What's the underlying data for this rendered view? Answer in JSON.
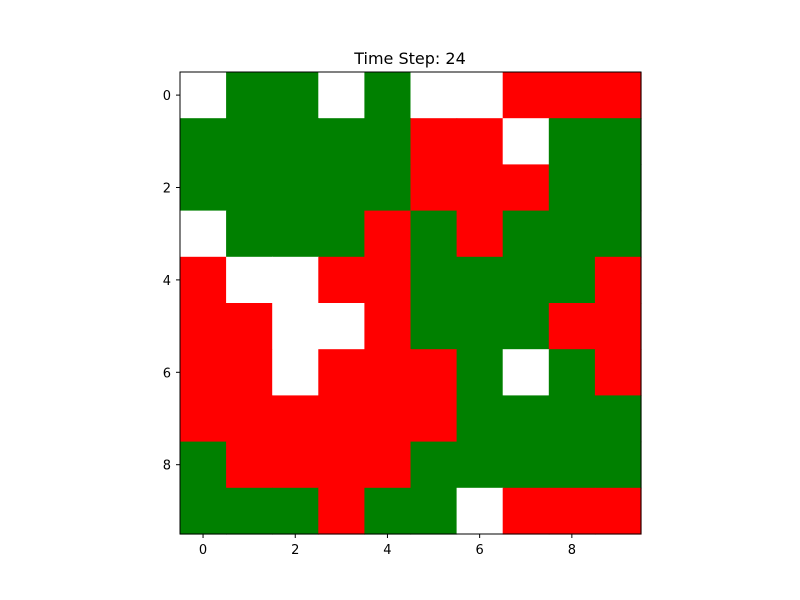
{
  "chart_data": {
    "type": "heatmap",
    "title": "Time Step: 24",
    "xlabel": "",
    "ylabel": "",
    "xlim": [
      -0.5,
      9.5
    ],
    "ylim": [
      9.5,
      -0.5
    ],
    "x_ticks": [
      0,
      2,
      4,
      6,
      8
    ],
    "y_ticks": [
      0,
      2,
      4,
      6,
      8
    ],
    "grid": false,
    "legend": "none",
    "colormap": {
      "0": "#ffffff",
      "1": "#008000",
      "2": "#ff0000"
    },
    "cells": [
      [
        0,
        1,
        1,
        0,
        1,
        0,
        0,
        2,
        2,
        2
      ],
      [
        1,
        1,
        1,
        1,
        1,
        2,
        2,
        0,
        1,
        1
      ],
      [
        1,
        1,
        1,
        1,
        1,
        2,
        2,
        2,
        1,
        1
      ],
      [
        0,
        1,
        1,
        1,
        2,
        1,
        2,
        1,
        1,
        1
      ],
      [
        2,
        0,
        0,
        2,
        2,
        1,
        1,
        1,
        1,
        2
      ],
      [
        2,
        2,
        0,
        0,
        2,
        1,
        1,
        1,
        2,
        2
      ],
      [
        2,
        2,
        0,
        2,
        2,
        2,
        1,
        0,
        1,
        2
      ],
      [
        2,
        2,
        2,
        2,
        2,
        2,
        1,
        1,
        1,
        1
      ],
      [
        1,
        2,
        2,
        2,
        2,
        1,
        1,
        1,
        1,
        1
      ],
      [
        1,
        1,
        1,
        2,
        1,
        1,
        0,
        2,
        2,
        2
      ]
    ]
  }
}
